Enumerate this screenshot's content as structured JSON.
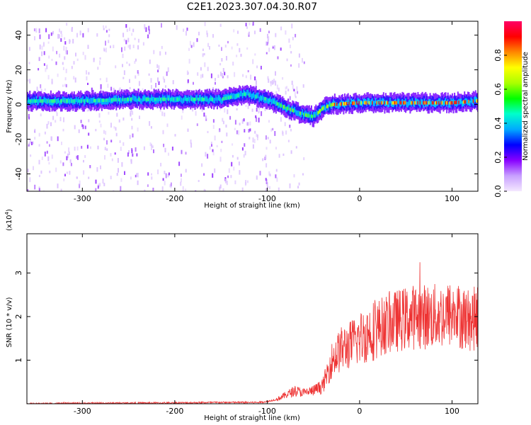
{
  "title": "C2E1.2023.307.04.30.R07",
  "chart_data": [
    {
      "type": "heatmap",
      "xlabel": "Height of straight line (km)",
      "ylabel": "Frequency (Hz)",
      "xlim": [
        -360,
        128
      ],
      "ylim": [
        -50,
        48
      ],
      "xticks": [
        -300,
        -200,
        -100,
        0,
        100
      ],
      "yticks": [
        -40,
        -20,
        0,
        20,
        40
      ],
      "colorbar": {
        "label": "Normalized spectral amplitude",
        "range": [
          0,
          1
        ],
        "ticks": [
          0.0,
          0.2,
          0.4,
          0.6,
          0.8
        ],
        "colors": [
          "#f4e8ff",
          "#c8a0ff",
          "#8800ff",
          "#0000ff",
          "#00aaff",
          "#00ffcc",
          "#00ff00",
          "#aaff00",
          "#ffff00",
          "#ff8800",
          "#ff0000",
          "#ff0066"
        ]
      },
      "ridge": [
        {
          "x": -350,
          "f": 2
        },
        {
          "x": -300,
          "f": 2
        },
        {
          "x": -250,
          "f": 3
        },
        {
          "x": -200,
          "f": 3
        },
        {
          "x": -150,
          "f": 3
        },
        {
          "x": -125,
          "f": 6
        },
        {
          "x": -100,
          "f": 3
        },
        {
          "x": -80,
          "f": -2
        },
        {
          "x": -60,
          "f": -6
        },
        {
          "x": -50,
          "f": -7
        },
        {
          "x": -40,
          "f": -2
        },
        {
          "x": -30,
          "f": 0
        },
        {
          "x": 0,
          "f": 1
        },
        {
          "x": 50,
          "f": 1
        },
        {
          "x": 100,
          "f": 1
        },
        {
          "x": 125,
          "f": 2
        }
      ],
      "grid": false
    },
    {
      "type": "line",
      "xlabel": "Height of straight line (km)",
      "ylabel": "SNR (10 * v/v)",
      "scale_note": "(x10",
      "scale_exp": "4",
      "scale_close": ")",
      "xlim": [
        -360,
        128
      ],
      "ylim": [
        0,
        3.9
      ],
      "xticks": [
        -300,
        -200,
        -100,
        0,
        100
      ],
      "yticks": [
        1,
        2,
        3
      ],
      "series": [
        {
          "color": "#ee3333",
          "x": [
            -360,
            -300,
            -200,
            -150,
            -110,
            -100,
            -90,
            -80,
            -70,
            -60,
            -50,
            -40,
            -30,
            -20,
            -10,
            0,
            20,
            40,
            60,
            80,
            100,
            110,
            120,
            128
          ],
          "y": [
            0.0,
            0.01,
            0.02,
            0.03,
            0.03,
            0.05,
            0.1,
            0.2,
            0.3,
            0.25,
            0.3,
            0.4,
            1.0,
            1.25,
            1.35,
            1.5,
            1.75,
            1.9,
            2.0,
            2.0,
            2.05,
            2.0,
            1.9,
            2.0
          ]
        }
      ],
      "grid": false
    }
  ]
}
